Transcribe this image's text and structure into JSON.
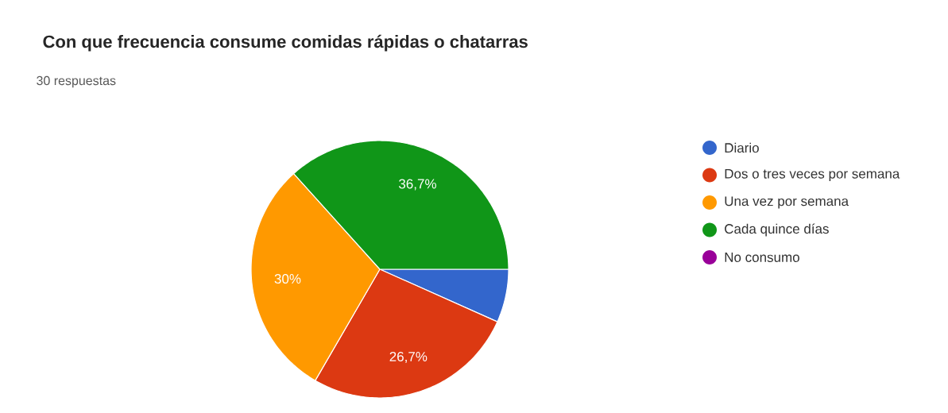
{
  "chart_data": {
    "type": "pie",
    "title": "Con que frecuencia consume  comidas rápidas o chatarras",
    "subtitle": "30 respuestas",
    "categories": [
      "Diario",
      "Dos o tres veces por semana",
      "Una vez por semana",
      "Cada quince días",
      "No consumo"
    ],
    "values": [
      6.7,
      26.7,
      30,
      36.7,
      0
    ],
    "colors": [
      "#3366cc",
      "#dc3912",
      "#ff9900",
      "#109618",
      "#990099"
    ],
    "value_labels": [
      null,
      "26,7%",
      "30%",
      "36,7%",
      null
    ],
    "legend": "right"
  }
}
